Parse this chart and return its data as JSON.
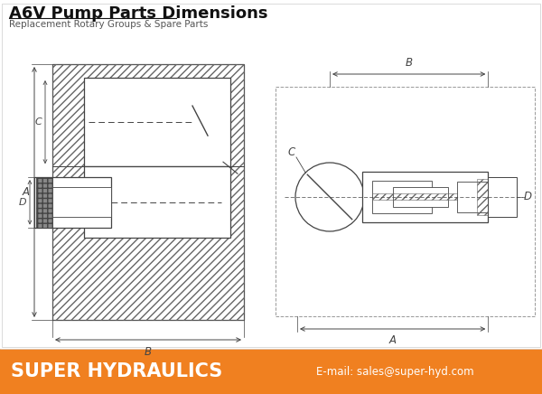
{
  "title": "A6V Pump Parts Dimensions",
  "subtitle": "Replacement Rotary Groups & Spare Parts",
  "footer_text": "SUPER HYDRAULICS",
  "footer_email": "E-mail: sales@super-hyd.com",
  "footer_bg": "#F08020",
  "footer_text_color": "#FFFFFF",
  "bg_color": "#FFFFFF",
  "drawing_color": "#444444",
  "title_color": "#111111",
  "subtitle_color": "#555555",
  "fig_width": 6.0,
  "fig_height": 4.36
}
